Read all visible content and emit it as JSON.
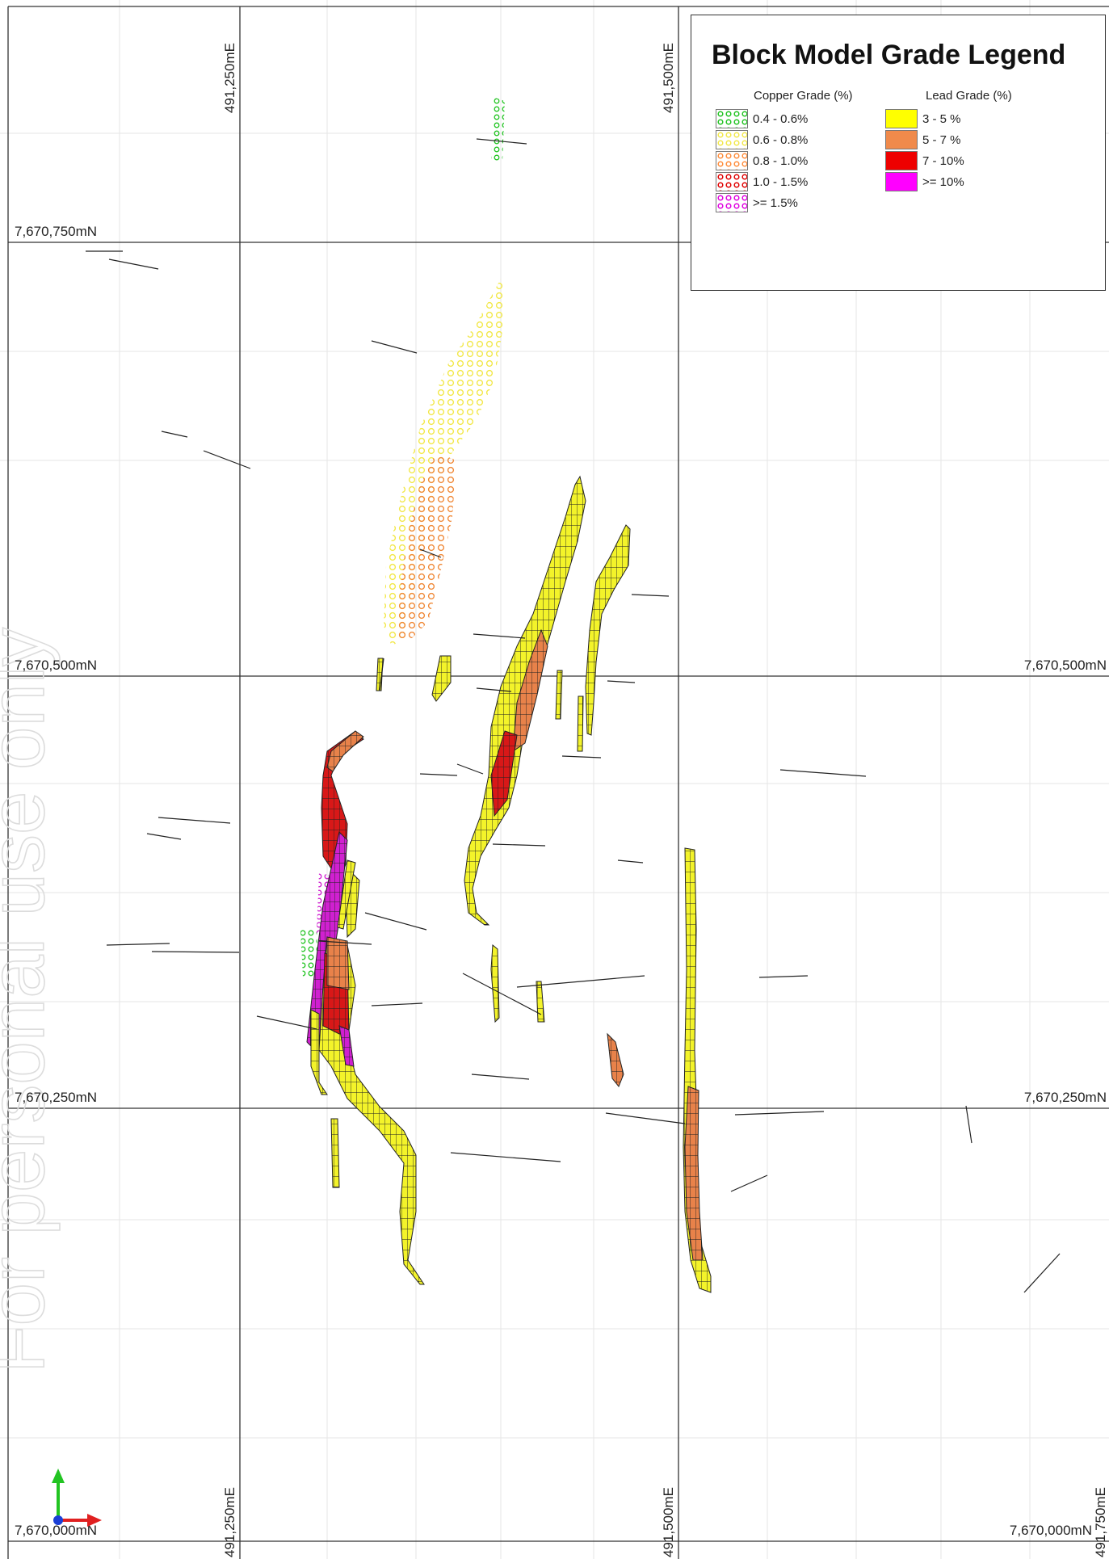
{
  "legend": {
    "title": "Block Model Grade Legend",
    "copper": {
      "heading": "Copper Grade (%)",
      "items": [
        {
          "label": "0.4 - 0.6%",
          "color": "#22c422"
        },
        {
          "label": "0.6 - 0.8%",
          "color": "#ffff66"
        },
        {
          "label": "0.8 - 1.0%",
          "color": "#ff8c3a"
        },
        {
          "label": "1.0 - 1.5%",
          "color": "#e00000"
        },
        {
          "label": ">= 1.5%",
          "color": "#e000e0"
        }
      ]
    },
    "lead": {
      "heading": "Lead Grade (%)",
      "items": [
        {
          "label": "3 - 5 %",
          "color": "#ffff00"
        },
        {
          "label": "5 - 7 %",
          "color": "#f08a4b"
        },
        {
          "label": "7 - 10%",
          "color": "#ee0000"
        },
        {
          "label": ">= 10%",
          "color": "#ff00ff"
        }
      ]
    }
  },
  "grid": {
    "easting_top": [
      "491,250mE",
      "491,500mE"
    ],
    "easting_bottom": [
      "491,250mE",
      "491,500mE",
      "491,750mE"
    ],
    "northing_left": [
      "7,670,750mN",
      "7,670,500mN",
      "7,670,250mN",
      "7,670,000mN"
    ],
    "northing_right": [
      "7,670,500mN",
      "7,670,250mN",
      "7,670,000mN"
    ]
  },
  "watermark": "For personal use only",
  "colors": {
    "lead_yellow": "#f3f32a",
    "lead_orange": "#e8824a",
    "lead_red": "#d81818",
    "lead_magenta": "#d020d0",
    "grid_major": "#333333",
    "grid_minor": "#e6e6e6"
  }
}
